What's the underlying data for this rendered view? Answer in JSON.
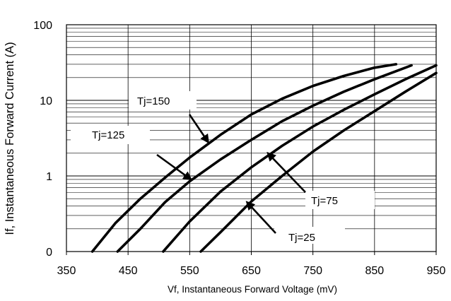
{
  "chart_data": {
    "type": "line",
    "title": "",
    "xlabel": "Vf, Instantaneous Forward  Voltage (mV)",
    "ylabel": "If, Instantaneous Forward Current (A)",
    "xlim": [
      350,
      950
    ],
    "ylim": [
      0.1,
      100
    ],
    "y_scale": "log",
    "x_ticks": [
      "350",
      "450",
      "550",
      "650",
      "750",
      "850",
      "950"
    ],
    "y_ticks": [
      {
        "value": 100,
        "label": "100"
      },
      {
        "value": 10,
        "label": "10"
      },
      {
        "value": 1,
        "label": "1"
      },
      {
        "value": 0.1,
        "label": "0"
      }
    ],
    "grid": {
      "horizontal": true,
      "vertical_major": true
    },
    "legend": "none",
    "line_color": "#000000",
    "series": [
      {
        "name": "Tj=150",
        "x": [
          392,
          430,
          470,
          510,
          550,
          600,
          650,
          700,
          750,
          800,
          850,
          885
        ],
        "y": [
          0.1,
          0.24,
          0.5,
          0.95,
          1.75,
          3.5,
          6.5,
          10.5,
          15.5,
          21,
          27,
          30
        ]
      },
      {
        "name": "Tj=125",
        "x": [
          433,
          470,
          510,
          550,
          600,
          650,
          700,
          750,
          800,
          850,
          900,
          910
        ],
        "y": [
          0.1,
          0.2,
          0.45,
          0.85,
          1.65,
          3.0,
          5.3,
          8.5,
          13,
          19,
          27,
          29
        ]
      },
      {
        "name": "Tj=75",
        "x": [
          507,
          550,
          600,
          650,
          700,
          750,
          800,
          850,
          900,
          950
        ],
        "y": [
          0.1,
          0.25,
          0.62,
          1.3,
          2.5,
          4.5,
          7.5,
          12,
          19,
          29
        ]
      },
      {
        "name": "Tj=25",
        "x": [
          568,
          600,
          650,
          700,
          750,
          800,
          850,
          900,
          950
        ],
        "y": [
          0.1,
          0.18,
          0.46,
          1.0,
          2.1,
          4.0,
          7.2,
          13,
          23
        ]
      }
    ],
    "annotations": [
      {
        "text": "Tj=150",
        "series": "Tj=150",
        "target_x": 580,
        "target_y": 2.8
      },
      {
        "text": "Tj=125",
        "series": "Tj=125",
        "target_x": 552,
        "target_y": 0.9
      },
      {
        "text": "Tj=75",
        "series": "Tj=75",
        "target_x": 677,
        "target_y": 2.0
      },
      {
        "text": "Tj=25",
        "series": "Tj=25",
        "target_x": 643,
        "target_y": 0.45
      }
    ]
  }
}
